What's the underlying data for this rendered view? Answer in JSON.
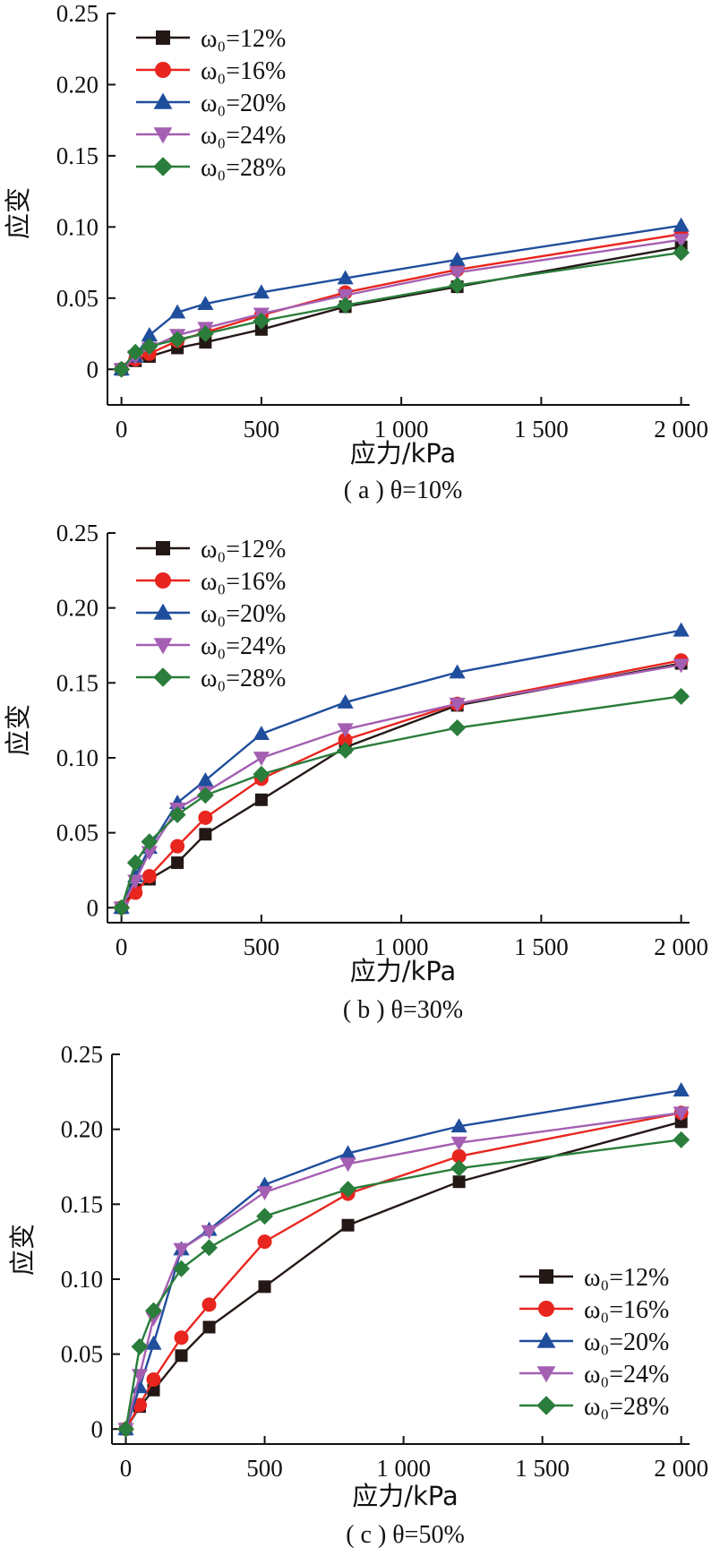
{
  "chart_data": [
    {
      "type": "line",
      "caption": "( a ) θ=10%",
      "xlabel": "应力/kPa",
      "ylabel": "应变",
      "xlim": [
        -50,
        2030
      ],
      "ylim": [
        -0.025,
        0.25
      ],
      "xticks": [
        0,
        500,
        1000,
        1500,
        2000
      ],
      "xtick_labels": [
        "0",
        "500",
        "1 000",
        "1 500",
        "2 000"
      ],
      "yticks": [
        0,
        0.05,
        0.1,
        0.15,
        0.2,
        0.25
      ],
      "ytick_labels": [
        "0",
        "0.05",
        "0.10",
        "0.15",
        "0.20",
        "0.25"
      ],
      "legend_position": "top-left",
      "x": [
        0,
        50,
        100,
        200,
        300,
        500,
        800,
        1200,
        2000
      ],
      "series": [
        {
          "name": "ω₀=12%",
          "marker": "square",
          "color": "#231815",
          "values": [
            0,
            0.006,
            0.009,
            0.015,
            0.019,
            0.028,
            0.044,
            0.058,
            0.086
          ]
        },
        {
          "name": "ω₀=16%",
          "marker": "circle",
          "color": "#e8251e",
          "values": [
            0,
            0.007,
            0.011,
            0.02,
            0.026,
            0.038,
            0.054,
            0.07,
            0.095
          ]
        },
        {
          "name": "ω₀=20%",
          "marker": "triangle-up",
          "color": "#1f4e9c",
          "values": [
            0,
            0.009,
            0.024,
            0.04,
            0.046,
            0.054,
            0.064,
            0.077,
            0.101
          ]
        },
        {
          "name": "ω₀=24%",
          "marker": "triangle-down",
          "color": "#a45fb2",
          "values": [
            0,
            0.009,
            0.015,
            0.024,
            0.029,
            0.039,
            0.052,
            0.068,
            0.091
          ]
        },
        {
          "name": "ω₀=28%",
          "marker": "diamond",
          "color": "#2a7d3b",
          "values": [
            0,
            0.012,
            0.016,
            0.021,
            0.025,
            0.034,
            0.045,
            0.059,
            0.082
          ]
        }
      ]
    },
    {
      "type": "line",
      "caption": "( b ) θ=30%",
      "xlabel": "应力/kPa",
      "ylabel": "应变",
      "xlim": [
        -50,
        2030
      ],
      "ylim": [
        -0.01,
        0.25
      ],
      "xticks": [
        0,
        500,
        1000,
        1500,
        2000
      ],
      "xtick_labels": [
        "0",
        "500",
        "1 000",
        "1 500",
        "2 000"
      ],
      "yticks": [
        0,
        0.05,
        0.1,
        0.15,
        0.2,
        0.25
      ],
      "ytick_labels": [
        "0",
        "0.05",
        "0.10",
        "0.15",
        "0.20",
        "0.25"
      ],
      "legend_position": "top-left",
      "x": [
        0,
        50,
        100,
        200,
        300,
        500,
        800,
        1200,
        2000
      ],
      "series": [
        {
          "name": "ω₀=12%",
          "marker": "square",
          "color": "#231815",
          "values": [
            0,
            0.012,
            0.019,
            0.03,
            0.049,
            0.072,
            0.107,
            0.135,
            0.163
          ]
        },
        {
          "name": "ω₀=16%",
          "marker": "circle",
          "color": "#e8251e",
          "values": [
            0,
            0.01,
            0.021,
            0.041,
            0.06,
            0.086,
            0.112,
            0.136,
            0.165
          ]
        },
        {
          "name": "ω₀=20%",
          "marker": "triangle-up",
          "color": "#1f4e9c",
          "values": [
            0,
            0.021,
            0.04,
            0.07,
            0.085,
            0.116,
            0.137,
            0.157,
            0.185
          ]
        },
        {
          "name": "ω₀=24%",
          "marker": "triangle-down",
          "color": "#a45fb2",
          "values": [
            0,
            0.018,
            0.037,
            0.066,
            0.077,
            0.1,
            0.119,
            0.136,
            0.162
          ]
        },
        {
          "name": "ω₀=28%",
          "marker": "diamond",
          "color": "#2a7d3b",
          "values": [
            0,
            0.03,
            0.044,
            0.062,
            0.075,
            0.089,
            0.105,
            0.12,
            0.141
          ]
        }
      ]
    },
    {
      "type": "line",
      "caption": "( c ) θ=50%",
      "xlabel": "应力/kPa",
      "ylabel": "应变",
      "xlim": [
        -50,
        2030
      ],
      "ylim": [
        -0.01,
        0.25
      ],
      "xticks": [
        0,
        500,
        1000,
        1500,
        2000
      ],
      "xtick_labels": [
        "0",
        "500",
        "1 000",
        "1 500",
        "2 000"
      ],
      "yticks": [
        0,
        0.05,
        0.1,
        0.15,
        0.2,
        0.25
      ],
      "ytick_labels": [
        "0",
        "0.05",
        "0.10",
        "0.15",
        "0.20",
        "0.25"
      ],
      "legend_position": "bottom-right",
      "x": [
        0,
        50,
        100,
        200,
        300,
        500,
        800,
        1200,
        2000
      ],
      "series": [
        {
          "name": "ω₀=12%",
          "marker": "square",
          "color": "#231815",
          "values": [
            0,
            0.015,
            0.026,
            0.049,
            0.068,
            0.095,
            0.136,
            0.165,
            0.205
          ]
        },
        {
          "name": "ω₀=16%",
          "marker": "circle",
          "color": "#e8251e",
          "values": [
            0,
            0.016,
            0.033,
            0.061,
            0.083,
            0.125,
            0.157,
            0.182,
            0.211
          ]
        },
        {
          "name": "ω₀=20%",
          "marker": "triangle-up",
          "color": "#1f4e9c",
          "values": [
            0,
            0.028,
            0.057,
            0.12,
            0.133,
            0.163,
            0.184,
            0.202,
            0.226
          ]
        },
        {
          "name": "ω₀=24%",
          "marker": "triangle-down",
          "color": "#a45fb2",
          "values": [
            0,
            0.036,
            0.074,
            0.12,
            0.132,
            0.158,
            0.177,
            0.191,
            0.211
          ]
        },
        {
          "name": "ω₀=28%",
          "marker": "diamond",
          "color": "#2a7d3b",
          "values": [
            0,
            0.055,
            0.079,
            0.107,
            0.121,
            0.142,
            0.16,
            0.174,
            0.193
          ]
        }
      ]
    }
  ]
}
